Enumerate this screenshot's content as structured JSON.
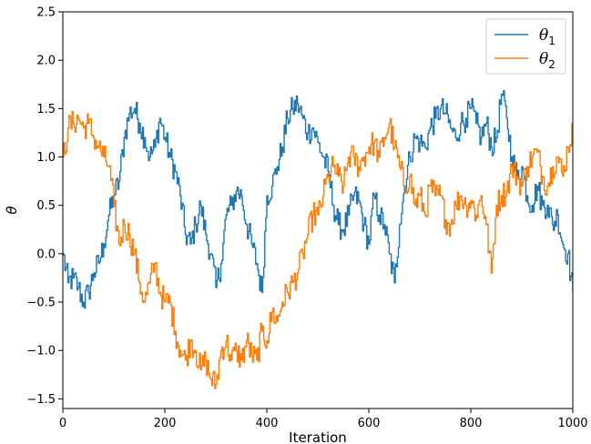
{
  "chart_data": {
    "type": "line",
    "title": "",
    "xlabel": "Iteration",
    "ylabel": "θ",
    "xlim": [
      0,
      1000
    ],
    "ylim": [
      -1.6,
      2.5
    ],
    "xticks": [
      0,
      200,
      400,
      600,
      800,
      1000
    ],
    "xtick_labels": [
      "0",
      "200",
      "400",
      "600",
      "800",
      "1000"
    ],
    "yticks": [
      -1.5,
      -1.0,
      -0.5,
      0.0,
      0.5,
      1.0,
      1.5,
      2.0,
      2.5
    ],
    "ytick_labels": [
      "−1.5",
      "−1.0",
      "−0.5",
      "0.0",
      "0.5",
      "1.0",
      "1.5",
      "2.0",
      "2.5"
    ],
    "grid": false,
    "legend_position": "top-right",
    "series": [
      {
        "name": "θ1",
        "legend_base": "θ",
        "legend_sub": "1",
        "color": "#1f77b4",
        "x": [
          0,
          10,
          20,
          30,
          40,
          50,
          60,
          70,
          80,
          90,
          100,
          110,
          120,
          130,
          140,
          150,
          160,
          170,
          180,
          190,
          200,
          210,
          220,
          230,
          240,
          250,
          260,
          270,
          280,
          290,
          300,
          310,
          320,
          330,
          340,
          350,
          360,
          370,
          380,
          390,
          400,
          410,
          420,
          430,
          440,
          450,
          460,
          470,
          480,
          490,
          500,
          510,
          520,
          530,
          540,
          550,
          560,
          570,
          580,
          590,
          600,
          610,
          620,
          630,
          640,
          650,
          660,
          670,
          680,
          690,
          700,
          710,
          720,
          730,
          740,
          750,
          760,
          770,
          780,
          790,
          800,
          810,
          820,
          830,
          840,
          850,
          860,
          870,
          880,
          890,
          900,
          910,
          920,
          930,
          940,
          950,
          960,
          970,
          980,
          990,
          1000
        ],
        "y": [
          0.0,
          -0.3,
          -0.25,
          -0.35,
          -0.5,
          -0.4,
          -0.2,
          -0.1,
          0.1,
          0.4,
          0.6,
          0.75,
          1.2,
          1.45,
          1.5,
          1.35,
          1.2,
          1.0,
          1.1,
          1.4,
          1.2,
          1.0,
          0.85,
          0.6,
          0.2,
          0.1,
          0.3,
          0.5,
          0.2,
          0.0,
          -0.35,
          -0.1,
          0.4,
          0.5,
          0.65,
          0.6,
          0.3,
          0.1,
          -0.1,
          -0.4,
          0.6,
          0.7,
          0.9,
          1.1,
          1.4,
          1.5,
          1.55,
          1.4,
          1.25,
          1.3,
          1.15,
          1.0,
          0.85,
          0.5,
          0.3,
          0.25,
          0.4,
          0.6,
          0.55,
          0.3,
          0.1,
          0.6,
          0.4,
          0.3,
          0.0,
          -0.3,
          0.3,
          0.7,
          1.0,
          1.2,
          1.15,
          1.1,
          1.3,
          1.4,
          1.5,
          1.45,
          1.3,
          1.2,
          1.35,
          1.4,
          1.5,
          1.35,
          1.2,
          1.35,
          1.1,
          1.2,
          1.65,
          1.4,
          1.0,
          0.8,
          0.9,
          0.6,
          0.5,
          0.7,
          0.5,
          0.5,
          0.3,
          0.4,
          0.1,
          0.0,
          -0.4
        ]
      },
      {
        "name": "θ2",
        "legend_base": "θ",
        "legend_sub": "2",
        "color": "#ff7f0e",
        "x": [
          0,
          10,
          20,
          30,
          40,
          50,
          60,
          70,
          80,
          90,
          100,
          110,
          120,
          130,
          140,
          150,
          160,
          170,
          180,
          190,
          200,
          210,
          220,
          230,
          240,
          250,
          260,
          270,
          280,
          290,
          300,
          310,
          320,
          330,
          340,
          350,
          360,
          370,
          380,
          390,
          400,
          410,
          420,
          430,
          440,
          450,
          460,
          470,
          480,
          490,
          500,
          510,
          520,
          530,
          540,
          550,
          560,
          570,
          580,
          590,
          600,
          610,
          620,
          630,
          640,
          650,
          660,
          670,
          680,
          690,
          700,
          710,
          720,
          730,
          740,
          750,
          760,
          770,
          780,
          790,
          800,
          810,
          820,
          830,
          840,
          850,
          860,
          870,
          880,
          890,
          900,
          910,
          920,
          930,
          940,
          950,
          960,
          970,
          980,
          990,
          1000
        ],
        "y": [
          1.0,
          1.3,
          1.35,
          1.4,
          1.3,
          1.35,
          1.2,
          1.1,
          1.0,
          0.9,
          0.5,
          0.1,
          0.3,
          0.2,
          0.0,
          -0.3,
          -0.5,
          -0.3,
          -0.1,
          -0.4,
          -0.5,
          -0.5,
          -0.8,
          -1.0,
          -1.1,
          -0.9,
          -1.0,
          -1.2,
          -1.1,
          -1.3,
          -1.35,
          -1.0,
          -0.9,
          -1.1,
          -1.0,
          -1.1,
          -0.9,
          -1.05,
          -1.1,
          -0.8,
          -0.9,
          -0.6,
          -0.7,
          -0.5,
          -0.4,
          -0.3,
          -0.2,
          0.0,
          0.2,
          0.4,
          0.4,
          0.6,
          0.8,
          0.9,
          0.8,
          0.7,
          1.0,
          1.0,
          0.9,
          1.0,
          1.1,
          1.15,
          1.0,
          1.2,
          1.35,
          1.1,
          0.9,
          0.7,
          0.8,
          0.5,
          0.6,
          0.4,
          0.7,
          0.6,
          0.6,
          0.35,
          0.3,
          0.5,
          0.6,
          0.5,
          0.55,
          0.4,
          0.6,
          0.3,
          -0.2,
          0.5,
          0.6,
          0.65,
          0.9,
          0.8,
          0.7,
          0.9,
          1.0,
          1.05,
          0.8,
          0.7,
          0.9,
          1.0,
          0.8,
          1.1,
          1.3
        ]
      }
    ]
  }
}
